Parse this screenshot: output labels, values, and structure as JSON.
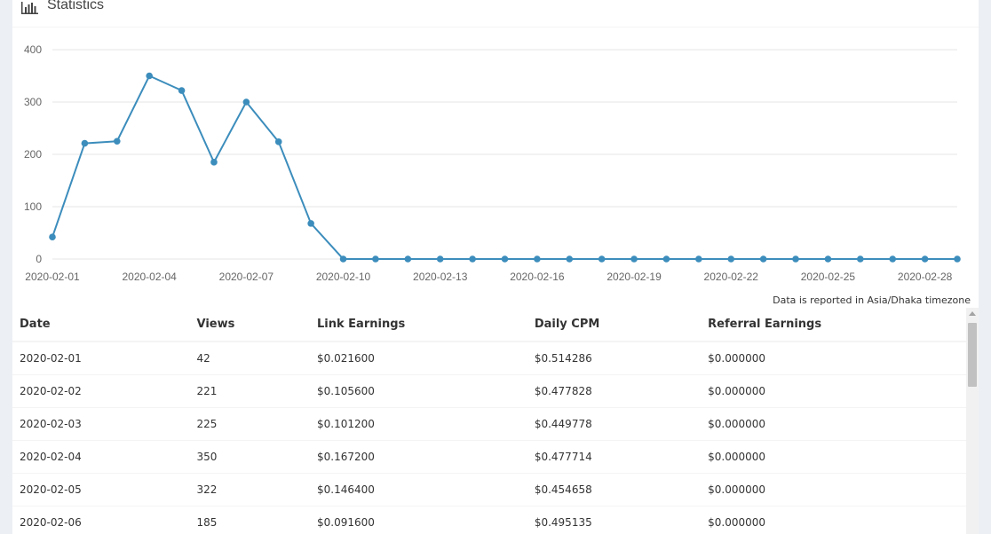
{
  "header": {
    "title": "Statistics",
    "icon": "bar-chart-icon"
  },
  "chart_data": {
    "type": "line",
    "x": [
      "2020-02-01",
      "2020-02-02",
      "2020-02-03",
      "2020-02-04",
      "2020-02-05",
      "2020-02-06",
      "2020-02-07",
      "2020-02-08",
      "2020-02-09",
      "2020-02-10",
      "2020-02-11",
      "2020-02-12",
      "2020-02-13",
      "2020-02-14",
      "2020-02-15",
      "2020-02-16",
      "2020-02-17",
      "2020-02-18",
      "2020-02-19",
      "2020-02-20",
      "2020-02-21",
      "2020-02-22",
      "2020-02-23",
      "2020-02-24",
      "2020-02-25",
      "2020-02-26",
      "2020-02-27",
      "2020-02-28",
      "2020-02-29"
    ],
    "series": [
      {
        "values": [
          42,
          221,
          225,
          350,
          322,
          185,
          300,
          224,
          68,
          0,
          0,
          0,
          0,
          0,
          0,
          0,
          0,
          0,
          0,
          0,
          0,
          0,
          0,
          0,
          0,
          0,
          0,
          0,
          0
        ]
      }
    ],
    "xticks": [
      "2020-02-01",
      "2020-02-04",
      "2020-02-07",
      "2020-02-10",
      "2020-02-13",
      "2020-02-16",
      "2020-02-19",
      "2020-02-22",
      "2020-02-25",
      "2020-02-28"
    ],
    "yticks": [
      0,
      100,
      200,
      300,
      400
    ],
    "ylim": [
      0,
      400
    ],
    "grid": true,
    "color": "#3c8dbc"
  },
  "timezone_note": "Data is reported in Asia/Dhaka timezone",
  "table": {
    "columns": [
      "Date",
      "Views",
      "Link Earnings",
      "Daily CPM",
      "Referral Earnings"
    ],
    "rows": [
      [
        "2020-02-01",
        "42",
        "$0.021600",
        "$0.514286",
        "$0.000000"
      ],
      [
        "2020-02-02",
        "221",
        "$0.105600",
        "$0.477828",
        "$0.000000"
      ],
      [
        "2020-02-03",
        "225",
        "$0.101200",
        "$0.449778",
        "$0.000000"
      ],
      [
        "2020-02-04",
        "350",
        "$0.167200",
        "$0.477714",
        "$0.000000"
      ],
      [
        "2020-02-05",
        "322",
        "$0.146400",
        "$0.454658",
        "$0.000000"
      ],
      [
        "2020-02-06",
        "185",
        "$0.091600",
        "$0.495135",
        "$0.000000"
      ]
    ]
  }
}
